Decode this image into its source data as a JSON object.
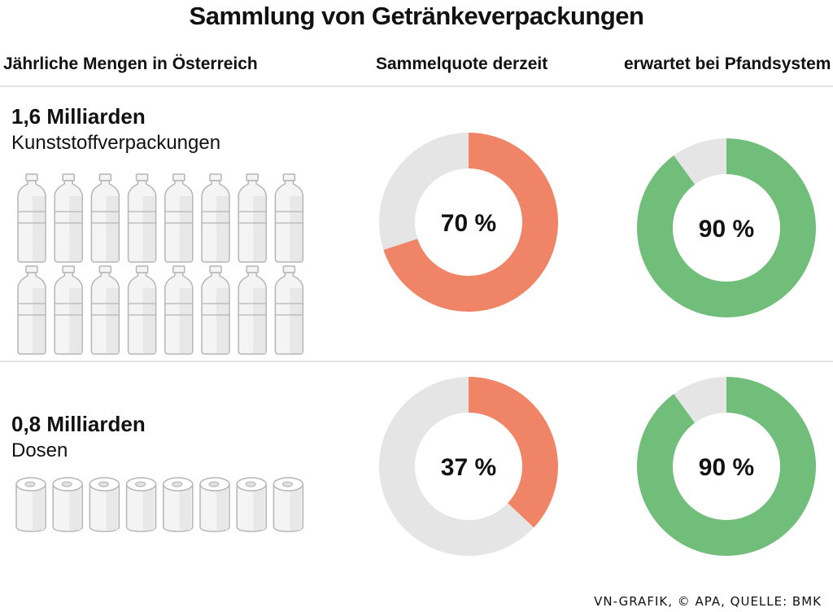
{
  "title": "Sammlung von Getränkeverpackungen",
  "columns": {
    "amounts": "Jährliche Mengen in Österreich",
    "current": "Sammelquote derzeit",
    "expected": "erwartet bei Pfandsystem"
  },
  "rows": [
    {
      "amount": "1,6 Milliarden",
      "kind": "Kunststoffverpackungen",
      "icon": "bottle-icon",
      "icon_count": 16,
      "current_label": "70 %",
      "expected_label": "90 %"
    },
    {
      "amount": "0,8 Milliarden",
      "kind": "Dosen",
      "icon": "can-icon",
      "icon_count": 8,
      "current_label": "37 %",
      "expected_label": "90 %"
    }
  ],
  "chart_data": {
    "type": "donut",
    "categories": [
      "Kunststoffverpackungen",
      "Dosen"
    ],
    "series": [
      {
        "name": "Sammelquote derzeit",
        "values": [
          70,
          37
        ],
        "color": "#f08466"
      },
      {
        "name": "erwartet bei Pfandsystem",
        "values": [
          90,
          90
        ],
        "color": "#71be7b"
      }
    ],
    "remainder_color": "#e5e5e5",
    "unit": "%"
  },
  "colors": {
    "rule": "#e3e3e3",
    "icon_fill": "#f4f4f4",
    "icon_stroke": "#b5b5b5"
  },
  "source": "VN-GRAFIK, © APA, QUELLE: BMK"
}
